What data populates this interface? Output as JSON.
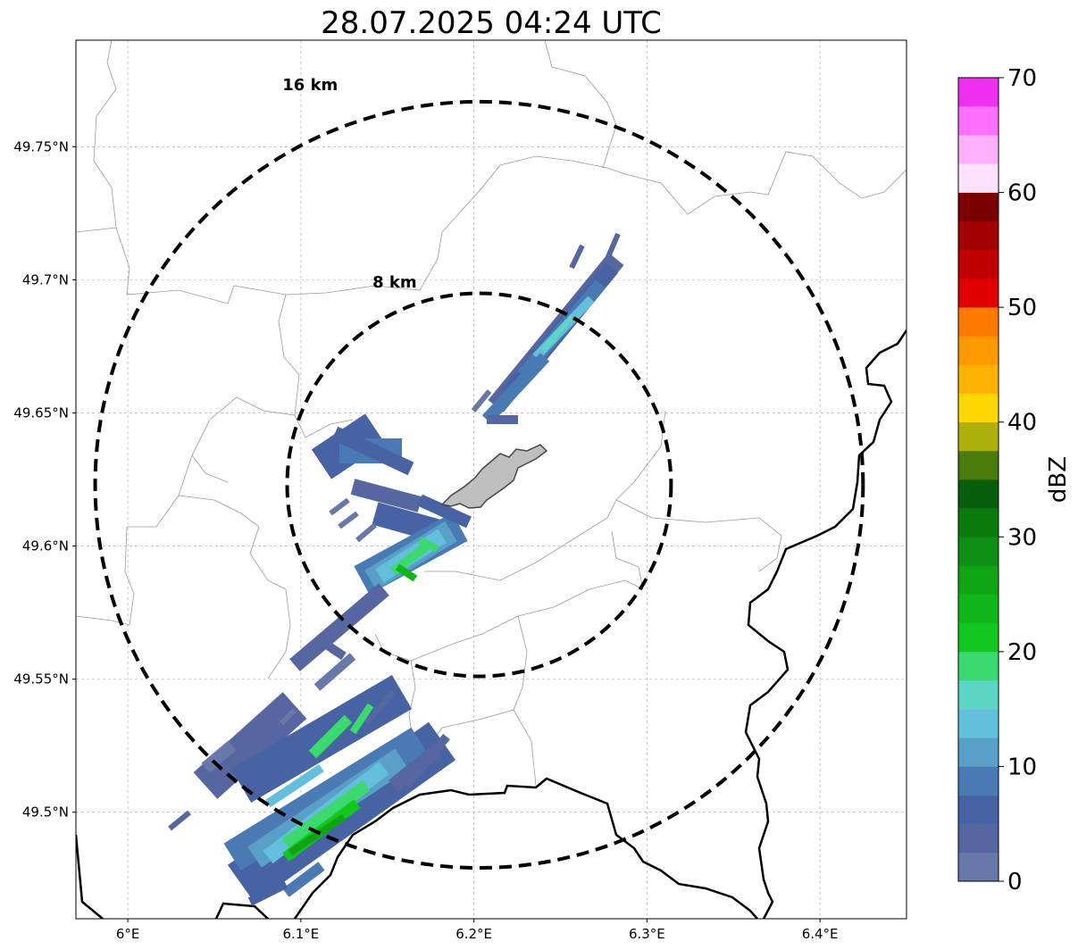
{
  "title": "28.07.2025 04:24 UTC",
  "map": {
    "lon_range": [
      5.97,
      6.45
    ],
    "lat_range": [
      49.46,
      49.79
    ],
    "lon_ticks": [
      {
        "value": 6.0,
        "label": "6°E"
      },
      {
        "value": 6.1,
        "label": "6.1°E"
      },
      {
        "value": 6.2,
        "label": "6.2°E"
      },
      {
        "value": 6.3,
        "label": "6.3°E"
      },
      {
        "value": 6.4,
        "label": "6.4°E"
      }
    ],
    "lat_ticks": [
      {
        "value": 49.5,
        "label": "49.5°N"
      },
      {
        "value": 49.55,
        "label": "49.55°N"
      },
      {
        "value": 49.6,
        "label": "49.6°N"
      },
      {
        "value": 49.65,
        "label": "49.65°N"
      },
      {
        "value": 49.7,
        "label": "49.7°N"
      },
      {
        "value": 49.75,
        "label": "49.75°N"
      }
    ],
    "gridlines": true,
    "radar_center": {
      "lon": 6.203,
      "lat": 49.623
    },
    "range_rings": [
      {
        "label": "8 km",
        "radius_km": 8
      },
      {
        "label": "16 km",
        "radius_km": 16
      }
    ],
    "city_fill": "#bfbfbf"
  },
  "colorbar": {
    "unit": "dBZ",
    "min": 0,
    "max": 70,
    "step": 2.5,
    "tick_labels": [
      "0",
      "10",
      "20",
      "30",
      "40",
      "50",
      "60",
      "70"
    ],
    "colors": [
      "#6878a8",
      "#5566a0",
      "#4763a3",
      "#4a7ab3",
      "#58a0c8",
      "#64bfdc",
      "#5ed6c6",
      "#3cd870",
      "#12c81e",
      "#10b51a",
      "#0fa414",
      "#0e8e12",
      "#0a7a0d",
      "#075e0a",
      "#4a7a0a",
      "#adb00a",
      "#ffd700",
      "#ffb300",
      "#ff9900",
      "#ff7a00",
      "#e00000",
      "#c00000",
      "#a00000",
      "#7a0000",
      "#ffe0ff",
      "#ffb0ff",
      "#ff70ff",
      "#f030f0"
    ]
  }
}
